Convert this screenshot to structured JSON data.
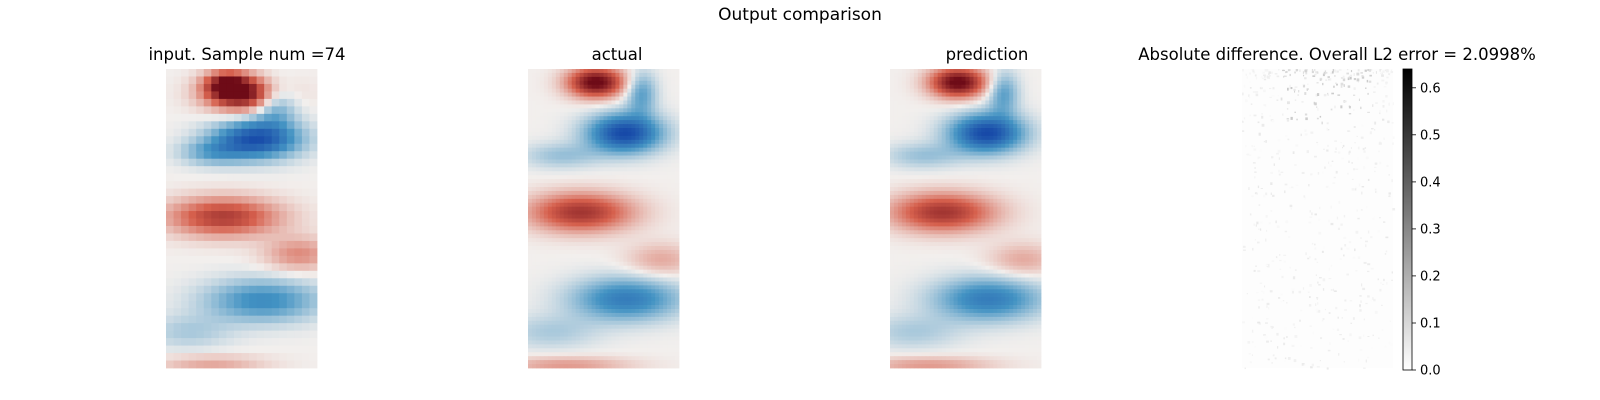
{
  "figure": {
    "title": "Output comparison"
  },
  "chart_data": [
    {
      "type": "heatmap",
      "title": "input. Sample num =74",
      "grid": false,
      "axes": "off",
      "colormap": "diverging red-white-blue",
      "resolution": "coarse",
      "palette": {
        "neg": "#1749a8",
        "mid": "#f2efed",
        "pos": "#6e0b17"
      },
      "vortices": [
        {
          "x": 0.53,
          "y": 0.085,
          "sx": 0.18,
          "sy": 0.04,
          "v": 1.0
        },
        {
          "x": 0.4,
          "y": 0.05,
          "sx": 0.1,
          "sy": 0.03,
          "v": 0.75
        },
        {
          "x": 0.72,
          "y": 0.11,
          "sx": 0.1,
          "sy": 0.05,
          "v": -0.55
        },
        {
          "x": 0.6,
          "y": 0.235,
          "sx": 0.2,
          "sy": 0.045,
          "v": -0.95
        },
        {
          "x": 0.3,
          "y": 0.28,
          "sx": 0.15,
          "sy": 0.03,
          "v": -0.35
        },
        {
          "x": 0.38,
          "y": 0.495,
          "sx": 0.26,
          "sy": 0.045,
          "v": 0.7
        },
        {
          "x": 0.88,
          "y": 0.62,
          "sx": 0.16,
          "sy": 0.04,
          "v": 0.35
        },
        {
          "x": 0.64,
          "y": 0.775,
          "sx": 0.27,
          "sy": 0.05,
          "v": -0.55
        },
        {
          "x": 0.15,
          "y": 0.88,
          "sx": 0.2,
          "sy": 0.04,
          "v": -0.2
        },
        {
          "x": 0.3,
          "y": 0.985,
          "sx": 0.25,
          "sy": 0.02,
          "v": 0.25
        }
      ]
    },
    {
      "type": "heatmap",
      "title": "actual",
      "grid": false,
      "axes": "off",
      "colormap": "diverging red-white-blue",
      "resolution": "fine",
      "palette": {
        "neg": "#1749a8",
        "mid": "#f2efed",
        "pos": "#6e0b17"
      },
      "vortices": [
        {
          "x": 0.45,
          "y": 0.045,
          "sx": 0.13,
          "sy": 0.035,
          "v": 1.05
        },
        {
          "x": 0.75,
          "y": 0.08,
          "sx": 0.07,
          "sy": 0.05,
          "v": -0.45
        },
        {
          "x": 0.64,
          "y": 0.215,
          "sx": 0.17,
          "sy": 0.045,
          "v": -1.0
        },
        {
          "x": 0.22,
          "y": 0.29,
          "sx": 0.18,
          "sy": 0.03,
          "v": -0.25
        },
        {
          "x": 0.35,
          "y": 0.48,
          "sx": 0.24,
          "sy": 0.045,
          "v": 0.75
        },
        {
          "x": 0.88,
          "y": 0.64,
          "sx": 0.16,
          "sy": 0.04,
          "v": 0.25
        },
        {
          "x": 0.65,
          "y": 0.77,
          "sx": 0.25,
          "sy": 0.05,
          "v": -0.65
        },
        {
          "x": 0.15,
          "y": 0.88,
          "sx": 0.22,
          "sy": 0.04,
          "v": -0.2
        },
        {
          "x": 0.25,
          "y": 0.99,
          "sx": 0.3,
          "sy": 0.02,
          "v": 0.3
        }
      ]
    },
    {
      "type": "heatmap",
      "title": "prediction",
      "grid": false,
      "axes": "off",
      "colormap": "diverging red-white-blue",
      "resolution": "fine",
      "palette": {
        "neg": "#1749a8",
        "mid": "#f2efed",
        "pos": "#6e0b17"
      },
      "vortices": [
        {
          "x": 0.45,
          "y": 0.045,
          "sx": 0.13,
          "sy": 0.035,
          "v": 1.05
        },
        {
          "x": 0.75,
          "y": 0.08,
          "sx": 0.07,
          "sy": 0.05,
          "v": -0.45
        },
        {
          "x": 0.64,
          "y": 0.215,
          "sx": 0.17,
          "sy": 0.045,
          "v": -1.0
        },
        {
          "x": 0.22,
          "y": 0.29,
          "sx": 0.18,
          "sy": 0.03,
          "v": -0.25
        },
        {
          "x": 0.35,
          "y": 0.48,
          "sx": 0.24,
          "sy": 0.045,
          "v": 0.75
        },
        {
          "x": 0.88,
          "y": 0.64,
          "sx": 0.16,
          "sy": 0.04,
          "v": 0.25
        },
        {
          "x": 0.65,
          "y": 0.77,
          "sx": 0.25,
          "sy": 0.05,
          "v": -0.65
        },
        {
          "x": 0.15,
          "y": 0.88,
          "sx": 0.22,
          "sy": 0.04,
          "v": -0.2
        },
        {
          "x": 0.25,
          "y": 0.99,
          "sx": 0.3,
          "sy": 0.02,
          "v": 0.3
        }
      ]
    },
    {
      "type": "heatmap",
      "title": "Absolute difference. Overall L2 error = 2.0998%",
      "grid": false,
      "axes": "off",
      "colormap": "greys (white to black)",
      "colorbar": {
        "placement": "right",
        "min": 0.0,
        "max": 0.64,
        "ticks": [
          0.0,
          0.1,
          0.2,
          0.3,
          0.4,
          0.5,
          0.6
        ],
        "tick_labels": [
          "0.0",
          "0.1",
          "0.2",
          "0.3",
          "0.4",
          "0.5",
          "0.6"
        ]
      }
    }
  ]
}
